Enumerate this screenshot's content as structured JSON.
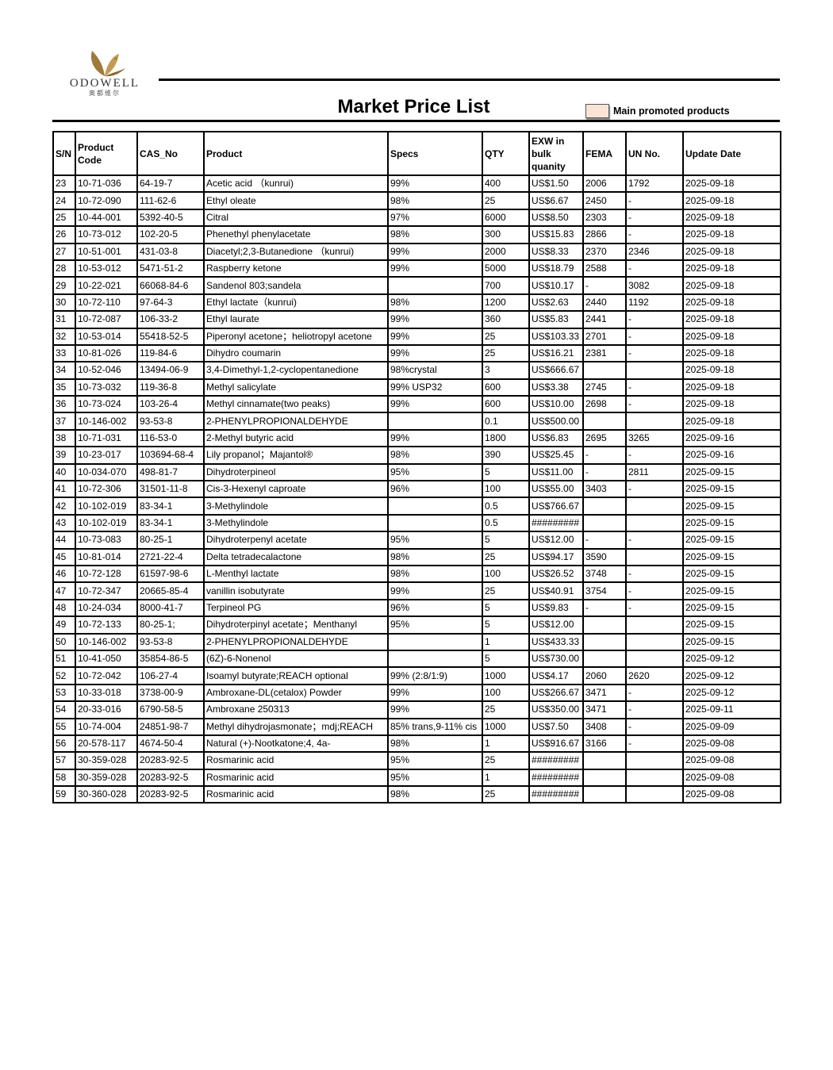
{
  "brand": {
    "name": "ODOWELL",
    "sub": "奥都维尔"
  },
  "title": "Market Price List",
  "legend": {
    "label": "Main promoted products",
    "color": "#fbe4d5"
  },
  "columns": [
    "S/N",
    "Product Code",
    "CAS_No",
    "Product",
    "Specs",
    "QTY",
    "EXW in bulk quanity",
    "FEMA",
    "UN No.",
    "Update Date"
  ],
  "rows": [
    [
      "23",
      "10-71-036",
      "64-19-7",
      "Acetic acid （kunrui)",
      "99%",
      "400",
      "US$1.50",
      "2006",
      "1792",
      "2025-09-18"
    ],
    [
      "24",
      "10-72-090",
      "111-62-6",
      "Ethyl oleate",
      "98%",
      "25",
      "US$6.67",
      "2450",
      "-",
      "2025-09-18"
    ],
    [
      "25",
      "10-44-001",
      "5392-40-5",
      "Citral",
      "97%",
      "6000",
      "US$8.50",
      "2303",
      "-",
      "2025-09-18"
    ],
    [
      "26",
      "10-73-012",
      "102-20-5",
      "Phenethyl phenylacetate",
      "98%",
      "300",
      "US$15.83",
      "2866",
      "-",
      "2025-09-18"
    ],
    [
      "27",
      "10-51-001",
      "431-03-8",
      "Diacetyl;2,3-Butanedione （kunrui)",
      "99%",
      "2000",
      "US$8.33",
      "2370",
      "2346",
      "2025-09-18"
    ],
    [
      "28",
      "10-53-012",
      "5471-51-2",
      "Raspberry ketone",
      "99%",
      "5000",
      "US$18.79",
      "2588",
      "-",
      "2025-09-18"
    ],
    [
      "29",
      "10-22-021",
      "66068-84-6",
      "Sandenol 803;sandela",
      "",
      "700",
      "US$10.17",
      "-",
      "3082",
      "2025-09-18"
    ],
    [
      "30",
      "10-72-110",
      "97-64-3",
      "Ethyl lactate（kunrui)",
      "98%",
      "1200",
      "US$2.63",
      "2440",
      "1192",
      "2025-09-18"
    ],
    [
      "31",
      "10-72-087",
      "106-33-2",
      "Ethyl laurate",
      "99%",
      "360",
      "US$5.83",
      "2441",
      "-",
      "2025-09-18"
    ],
    [
      "32",
      "10-53-014",
      "55418-52-5",
      "Piperonyl acetone；heliotropyl acetone",
      "99%",
      "25",
      "US$103.33",
      "2701",
      "-",
      "2025-09-18"
    ],
    [
      "33",
      "10-81-026",
      "119-84-6",
      "Dihydro coumarin",
      "99%",
      "25",
      "US$16.21",
      "2381",
      "-",
      "2025-09-18"
    ],
    [
      "34",
      "10-52-046",
      "13494-06-9",
      "3,4-Dimethyl-1,2-cyclopentanedione",
      "98%crystal",
      "3",
      "US$666.67",
      "",
      "",
      "2025-09-18"
    ],
    [
      "35",
      "10-73-032",
      "119-36-8",
      "Methyl salicylate",
      "99% USP32",
      "600",
      "US$3.38",
      "2745",
      "-",
      "2025-09-18"
    ],
    [
      "36",
      "10-73-024",
      "103-26-4",
      "Methyl cinnamate(two peaks)",
      "99%",
      "600",
      "US$10.00",
      "2698",
      "-",
      "2025-09-18"
    ],
    [
      "37",
      "10-146-002",
      "93-53-8",
      "2-PHENYLPROPIONALDEHYDE",
      "",
      "0.1",
      "US$500.00",
      "",
      "",
      "2025-09-18"
    ],
    [
      "38",
      "10-71-031",
      "116-53-0",
      "2-Methyl butyric acid",
      "99%",
      "1800",
      "US$6.83",
      "2695",
      "3265",
      "2025-09-16"
    ],
    [
      "39",
      "10-23-017",
      "103694-68-4",
      "Lily propanol；Majantol®",
      "98%",
      "390",
      "US$25.45",
      "-",
      "-",
      "2025-09-16"
    ],
    [
      "40",
      "10-034-070",
      "498-81-7",
      "Dihydroterpineol",
      "95%",
      "5",
      "US$11.00",
      "-",
      "2811",
      "2025-09-15"
    ],
    [
      "41",
      "10-72-306",
      "31501-11-8",
      "Cis-3-Hexenyl caproate",
      "96%",
      "100",
      "US$55.00",
      "3403",
      "-",
      "2025-09-15"
    ],
    [
      "42",
      "10-102-019",
      "83-34-1",
      "3-Methylindole",
      "",
      "0.5",
      "US$766.67",
      "",
      "",
      "2025-09-15"
    ],
    [
      "43",
      "10-102-019",
      "83-34-1",
      "3-Methylindole",
      "",
      "0.5",
      "#########",
      "",
      "",
      "2025-09-15"
    ],
    [
      "44",
      "10-73-083",
      "80-25-1",
      "Dihydroterpenyl acetate",
      "95%",
      "5",
      "US$12.00",
      "-",
      "-",
      "2025-09-15"
    ],
    [
      "45",
      "10-81-014",
      "2721-22-4",
      "Delta tetradecalactone",
      "98%",
      "25",
      "US$94.17",
      "3590",
      "",
      "2025-09-15"
    ],
    [
      "46",
      "10-72-128",
      "61597-98-6",
      "L-Menthyl lactate",
      "98%",
      "100",
      "US$26.52",
      "3748",
      "-",
      "2025-09-15"
    ],
    [
      "47",
      "10-72-347",
      "20665-85-4",
      "vanillin isobutyrate",
      "99%",
      "25",
      "US$40.91",
      "3754",
      "-",
      "2025-09-15"
    ],
    [
      "48",
      "10-24-034",
      "8000-41-7",
      "Terpineol PG",
      "96%",
      "5",
      "US$9.83",
      "-",
      "-",
      "2025-09-15"
    ],
    [
      "49",
      "10-72-133",
      "80-25-1;",
      "Dihydroterpinyl acetate；Menthanyl",
      "95%",
      "5",
      "US$12.00",
      "",
      "",
      "2025-09-15"
    ],
    [
      "50",
      "10-146-002",
      "93-53-8",
      "2-PHENYLPROPIONALDEHYDE",
      "",
      "1",
      "US$433.33",
      "",
      "",
      "2025-09-15"
    ],
    [
      "51",
      "10-41-050",
      "35854-86-5",
      "(6Z)-6-Nonenol",
      "",
      "5",
      "US$730.00",
      "",
      "",
      "2025-09-12"
    ],
    [
      "52",
      "10-72-042",
      "106-27-4",
      "Isoamyl butyrate;REACH optional",
      "99% (2:8/1:9)",
      "1000",
      "US$4.17",
      "2060",
      "2620",
      "2025-09-12"
    ],
    [
      "53",
      "10-33-018",
      "3738-00-9",
      "Ambroxane-DL(cetalox) Powder",
      "99%",
      "100",
      "US$266.67",
      "3471",
      "-",
      "2025-09-12"
    ],
    [
      "54",
      "20-33-016",
      "6790-58-5",
      "Ambroxane 250313",
      "99%",
      "25",
      "US$350.00",
      "3471",
      "-",
      "2025-09-11"
    ],
    [
      "55",
      "10-74-004",
      "24851-98-7",
      "Methyl dihydrojasmonate；mdj;REACH",
      "85% trans,9-11% cis",
      "1000",
      "US$7.50",
      "3408",
      "-",
      "2025-09-09"
    ],
    [
      "56",
      "20-578-117",
      "4674-50-4",
      "Natural (+)-Nootkatone;4, 4a-",
      "98%",
      "1",
      "US$916.67",
      "3166",
      "-",
      "2025-09-08"
    ],
    [
      "57",
      "30-359-028",
      "20283-92-5",
      "Rosmarinic acid",
      "95%",
      "25",
      "#########",
      "",
      "",
      "2025-09-08"
    ],
    [
      "58",
      "30-359-028",
      "20283-92-5",
      "Rosmarinic acid",
      "95%",
      "1",
      "#########",
      "",
      "",
      "2025-09-08"
    ],
    [
      "59",
      "30-360-028",
      "20283-92-5",
      "Rosmarinic acid",
      "98%",
      "25",
      "#########",
      "",
      "",
      "2025-09-08"
    ]
  ]
}
